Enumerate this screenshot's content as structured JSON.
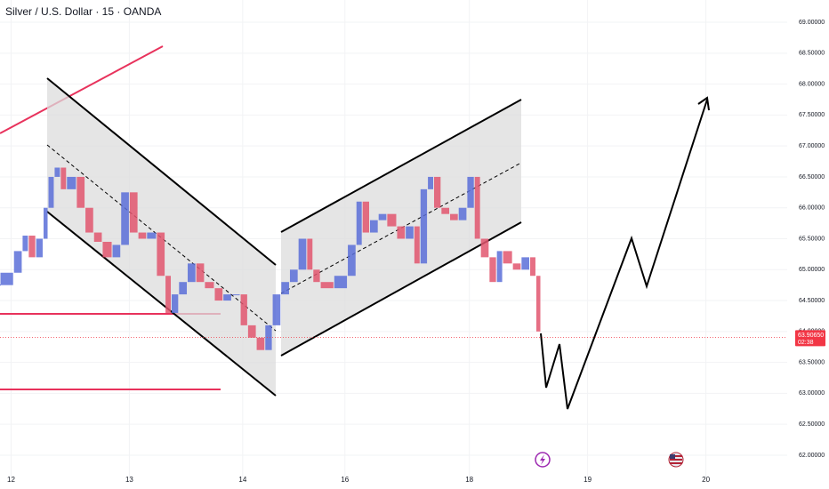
{
  "chart_data": {
    "type": "candlestick",
    "title": "Silver / U.S. Dollar · 15 · OANDA",
    "xlim": [
      -9,
      630
    ],
    "ylim": [
      61.64,
      69.36
    ],
    "xticks": [
      {
        "value": 0,
        "label": "12"
      },
      {
        "value": 96,
        "label": "13"
      },
      {
        "value": 188,
        "label": "14"
      },
      {
        "value": 271,
        "label": "16"
      },
      {
        "value": 372,
        "label": "18"
      },
      {
        "value": 468,
        "label": "19"
      },
      {
        "value": 564,
        "label": "20"
      }
    ],
    "yticks": [
      {
        "value": 62,
        "label": "62.00000"
      },
      {
        "value": 62.5,
        "label": "62.50000"
      },
      {
        "value": 63,
        "label": "63.00000"
      },
      {
        "value": 63.5,
        "label": "63.50000"
      },
      {
        "value": 64,
        "label": "64.00000"
      },
      {
        "value": 64.5,
        "label": "64.50000"
      },
      {
        "value": 65,
        "label": "65.00000"
      },
      {
        "value": 65.5,
        "label": "65.50000"
      },
      {
        "value": 66,
        "label": "66.00000"
      },
      {
        "value": 66.5,
        "label": "66.50000"
      },
      {
        "value": 67,
        "label": "67.00000"
      },
      {
        "value": 67.5,
        "label": "67.50000"
      },
      {
        "value": 68,
        "label": "68.00000"
      },
      {
        "value": 68.5,
        "label": "68.50000"
      },
      {
        "value": 69,
        "label": "69.00000"
      }
    ],
    "grid": true,
    "up_color": "#5a6fd8",
    "down_color": "#e2566f",
    "x": [
      -9,
      2,
      9,
      14,
      20,
      26,
      30,
      35,
      40,
      45,
      53,
      60,
      67,
      74,
      82,
      89,
      96,
      103,
      110,
      118,
      125,
      130,
      136,
      143,
      150,
      157,
      165,
      172,
      179,
      186,
      192,
      199,
      206,
      212,
      219,
      226,
      233,
      240,
      245,
      251,
      262,
      273,
      280,
      285,
      291,
      298,
      305,
      313,
      320,
      327,
      332,
      338,
      343,
      349,
      356,
      363,
      370,
      376,
      381,
      388,
      394,
      399,
      407,
      414,
      421,
      426,
      430
    ],
    "values": [
      64.75,
      64.95,
      65.3,
      65.55,
      65.2,
      65.5,
      66.0,
      66.5,
      66.65,
      66.3,
      66.5,
      66.0,
      65.6,
      65.45,
      65.2,
      65.4,
      66.25,
      65.6,
      65.5,
      65.6,
      64.9,
      64.3,
      64.6,
      64.8,
      65.1,
      64.8,
      64.7,
      64.5,
      64.6,
      64.6,
      64.1,
      63.9,
      63.7,
      64.1,
      64.6,
      64.8,
      65.0,
      65.5,
      65.0,
      64.8,
      64.7,
      64.9,
      65.4,
      66.1,
      65.6,
      65.8,
      65.9,
      65.7,
      65.5,
      65.7,
      65.1,
      66.3,
      66.5,
      66.0,
      65.9,
      65.8,
      66.0,
      66.5,
      65.5,
      65.2,
      64.8,
      65.3,
      65.1,
      65.0,
      65.2,
      64.9,
      64.0
    ],
    "last_price": {
      "value": 63.9065,
      "label": "63.90650"
    },
    "countdown": "02:38"
  }
}
